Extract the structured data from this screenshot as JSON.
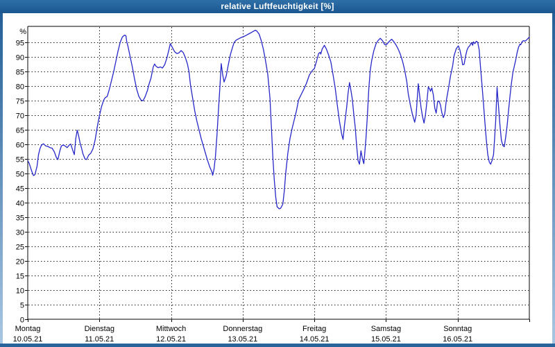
{
  "window": {
    "title": "relative Luftfeuchtigkeit [%]"
  },
  "colors": {
    "titlebar": "#1f5f96",
    "frame": "#28639a",
    "plot_background": "#ffffff",
    "grid": "#1a1a1a",
    "axis": "#000000",
    "series_line": "#2626c9",
    "title_text": "#ffffff",
    "tick_text": "#000000"
  },
  "chart_data": {
    "type": "line",
    "title": "relative Luftfeuchtigkeit [%]",
    "xlabel": "",
    "ylabel": "%",
    "ylim": [
      0,
      100.5
    ],
    "ytick_min": 0,
    "ytick_max": 95,
    "ytick_step": 5,
    "grid": true,
    "legend": "none",
    "x_axis": {
      "unit": "days",
      "range": [
        0,
        7
      ],
      "day_labels": [
        {
          "name": "Montag",
          "date": "10.05.21"
        },
        {
          "name": "Dienstag",
          "date": "11.05.21"
        },
        {
          "name": "Mittwoch",
          "date": "12.05.21"
        },
        {
          "name": "Donnerstag",
          "date": "13.05.21"
        },
        {
          "name": "Freitag",
          "date": "14.05.21"
        },
        {
          "name": "Samstag",
          "date": "15.05.21"
        },
        {
          "name": "Sonntag",
          "date": "16.05.21"
        }
      ]
    },
    "series": [
      {
        "name": "relative Luftfeuchtigkeit [%]",
        "points": [
          [
            0,
            54.4
          ],
          [
            0.02,
            53.5
          ],
          [
            0.04,
            52
          ],
          [
            0.06,
            50.5
          ],
          [
            0.08,
            49.3
          ],
          [
            0.1,
            49.6
          ],
          [
            0.13,
            52.5
          ],
          [
            0.15,
            56.5
          ],
          [
            0.17,
            58.5
          ],
          [
            0.19,
            59.7
          ],
          [
            0.22,
            60.2
          ],
          [
            0.25,
            59.5
          ],
          [
            0.28,
            59.3
          ],
          [
            0.31,
            58.9
          ],
          [
            0.34,
            58.7
          ],
          [
            0.37,
            57.5
          ],
          [
            0.4,
            55.5
          ],
          [
            0.42,
            54.8
          ],
          [
            0.45,
            58
          ],
          [
            0.47,
            59.5
          ],
          [
            0.5,
            59.8
          ],
          [
            0.53,
            59.3
          ],
          [
            0.55,
            58.9
          ],
          [
            0.58,
            59.8
          ],
          [
            0.6,
            60.1
          ],
          [
            0.63,
            57.8
          ],
          [
            0.65,
            56.5
          ],
          [
            0.67,
            62
          ],
          [
            0.69,
            64.9
          ],
          [
            0.71,
            63
          ],
          [
            0.73,
            60.5
          ],
          [
            0.75,
            58.8
          ],
          [
            0.77,
            56.8
          ],
          [
            0.8,
            55
          ],
          [
            0.82,
            54.8
          ],
          [
            0.85,
            56.3
          ],
          [
            0.88,
            57
          ],
          [
            0.91,
            58.5
          ],
          [
            0.94,
            61.5
          ],
          [
            0.97,
            66
          ],
          [
            1,
            69.8
          ],
          [
            1.03,
            73
          ],
          [
            1.06,
            75.2
          ],
          [
            1.08,
            76
          ],
          [
            1.11,
            76.5
          ],
          [
            1.14,
            79
          ],
          [
            1.17,
            82
          ],
          [
            1.2,
            85
          ],
          [
            1.23,
            88.5
          ],
          [
            1.26,
            92
          ],
          [
            1.29,
            95
          ],
          [
            1.32,
            96.8
          ],
          [
            1.35,
            97.5
          ],
          [
            1.37,
            97.3
          ],
          [
            1.38,
            95.5
          ],
          [
            1.4,
            93.5
          ],
          [
            1.43,
            90
          ],
          [
            1.46,
            86.5
          ],
          [
            1.49,
            82.5
          ],
          [
            1.52,
            79
          ],
          [
            1.55,
            76.5
          ],
          [
            1.58,
            75.2
          ],
          [
            1.61,
            75
          ],
          [
            1.64,
            76.5
          ],
          [
            1.67,
            78.5
          ],
          [
            1.69,
            80.5
          ],
          [
            1.72,
            82.8
          ],
          [
            1.75,
            86.5
          ],
          [
            1.77,
            87.6
          ],
          [
            1.79,
            86.8
          ],
          [
            1.82,
            86.3
          ],
          [
            1.85,
            86.6
          ],
          [
            1.88,
            86.2
          ],
          [
            1.91,
            87.3
          ],
          [
            1.94,
            89.5
          ],
          [
            1.97,
            92.5
          ],
          [
            1.99,
            94.6
          ],
          [
            2.02,
            93.2
          ],
          [
            2.05,
            91.8
          ],
          [
            2.08,
            91.2
          ],
          [
            2.11,
            91.4
          ],
          [
            2.14,
            92.2
          ],
          [
            2.17,
            91.5
          ],
          [
            2.2,
            89.8
          ],
          [
            2.23,
            87.5
          ],
          [
            2.25,
            85
          ],
          [
            2.27,
            80.5
          ],
          [
            2.3,
            76
          ],
          [
            2.33,
            71.5
          ],
          [
            2.36,
            68
          ],
          [
            2.39,
            65
          ],
          [
            2.42,
            62
          ],
          [
            2.45,
            59.5
          ],
          [
            2.48,
            57
          ],
          [
            2.51,
            54.5
          ],
          [
            2.54,
            52.3
          ],
          [
            2.57,
            50.6
          ],
          [
            2.58,
            49.4
          ],
          [
            2.6,
            51.5
          ],
          [
            2.62,
            56
          ],
          [
            2.64,
            63
          ],
          [
            2.66,
            71
          ],
          [
            2.68,
            79
          ],
          [
            2.7,
            87.7
          ],
          [
            2.72,
            84
          ],
          [
            2.74,
            81.4
          ],
          [
            2.77,
            83.5
          ],
          [
            2.8,
            87.5
          ],
          [
            2.83,
            91
          ],
          [
            2.86,
            93.5
          ],
          [
            2.88,
            95
          ],
          [
            2.91,
            95.8
          ],
          [
            2.94,
            96.2
          ],
          [
            2.97,
            96.6
          ],
          [
            3,
            96.9
          ],
          [
            3.03,
            97.2
          ],
          [
            3.06,
            97.6
          ],
          [
            3.09,
            98
          ],
          [
            3.12,
            98.4
          ],
          [
            3.15,
            98.8
          ],
          [
            3.18,
            99.2
          ],
          [
            3.2,
            98.8
          ],
          [
            3.23,
            97.8
          ],
          [
            3.26,
            95.5
          ],
          [
            3.29,
            92.5
          ],
          [
            3.32,
            88.5
          ],
          [
            3.35,
            84
          ],
          [
            3.38,
            76
          ],
          [
            3.4,
            66
          ],
          [
            3.42,
            56
          ],
          [
            3.44,
            48
          ],
          [
            3.46,
            42
          ],
          [
            3.48,
            38.6
          ],
          [
            3.51,
            37.9
          ],
          [
            3.53,
            38.1
          ],
          [
            3.56,
            39.5
          ],
          [
            3.58,
            44
          ],
          [
            3.6,
            50
          ],
          [
            3.63,
            57
          ],
          [
            3.66,
            62
          ],
          [
            3.69,
            65.5
          ],
          [
            3.72,
            68.5
          ],
          [
            3.75,
            71.5
          ],
          [
            3.78,
            75.3
          ],
          [
            3.81,
            76.8
          ],
          [
            3.85,
            78.8
          ],
          [
            3.89,
            81
          ],
          [
            3.93,
            83.8
          ],
          [
            3.97,
            85.3
          ],
          [
            4,
            86
          ],
          [
            4.03,
            88.5
          ],
          [
            4.06,
            91.2
          ],
          [
            4.08,
            91.6
          ],
          [
            4.09,
            91
          ],
          [
            4.11,
            92.8
          ],
          [
            4.14,
            94
          ],
          [
            4.17,
            92.6
          ],
          [
            4.2,
            90.6
          ],
          [
            4.23,
            88.3
          ],
          [
            4.26,
            84
          ],
          [
            4.29,
            79.5
          ],
          [
            4.32,
            73.5
          ],
          [
            4.35,
            68
          ],
          [
            4.38,
            63.6
          ],
          [
            4.4,
            61.7
          ],
          [
            4.42,
            66.5
          ],
          [
            4.45,
            72.5
          ],
          [
            4.47,
            77.5
          ],
          [
            4.49,
            81.2
          ],
          [
            4.51,
            78.6
          ],
          [
            4.53,
            75.4
          ],
          [
            4.55,
            70.5
          ],
          [
            4.57,
            66
          ],
          [
            4.59,
            59.5
          ],
          [
            4.61,
            54.5
          ],
          [
            4.63,
            53.2
          ],
          [
            4.65,
            57.8
          ],
          [
            4.67,
            55.2
          ],
          [
            4.69,
            53.4
          ],
          [
            4.7,
            55.8
          ],
          [
            4.72,
            62
          ],
          [
            4.74,
            70
          ],
          [
            4.76,
            79
          ],
          [
            4.78,
            85.5
          ],
          [
            4.8,
            88.8
          ],
          [
            4.83,
            92.2
          ],
          [
            4.86,
            94.5
          ],
          [
            4.89,
            95.7
          ],
          [
            4.92,
            96.4
          ],
          [
            4.95,
            95.6
          ],
          [
            4.98,
            94.3
          ],
          [
            5,
            94.1
          ],
          [
            5.03,
            94.9
          ],
          [
            5.06,
            95.7
          ],
          [
            5.08,
            96.1
          ],
          [
            5.11,
            95.2
          ],
          [
            5.14,
            94.1
          ],
          [
            5.17,
            92.7
          ],
          [
            5.2,
            90.9
          ],
          [
            5.23,
            88.6
          ],
          [
            5.26,
            85.5
          ],
          [
            5.29,
            81.5
          ],
          [
            5.31,
            77.5
          ],
          [
            5.34,
            73.5
          ],
          [
            5.37,
            70.2
          ],
          [
            5.4,
            67.6
          ],
          [
            5.42,
            70
          ],
          [
            5.45,
            80.8
          ],
          [
            5.47,
            76.5
          ],
          [
            5.49,
            72.5
          ],
          [
            5.51,
            69.5
          ],
          [
            5.53,
            67.3
          ],
          [
            5.55,
            70
          ],
          [
            5.57,
            74.5
          ],
          [
            5.59,
            79.7
          ],
          [
            5.61,
            79
          ],
          [
            5.62,
            78.2
          ],
          [
            5.64,
            79.4
          ],
          [
            5.66,
            77
          ],
          [
            5.68,
            72.5
          ],
          [
            5.7,
            70.7
          ],
          [
            5.72,
            74.6
          ],
          [
            5.74,
            74.9
          ],
          [
            5.76,
            73.5
          ],
          [
            5.78,
            70.8
          ],
          [
            5.8,
            69.2
          ],
          [
            5.82,
            70.5
          ],
          [
            5.84,
            74.8
          ],
          [
            5.87,
            79
          ],
          [
            5.9,
            83.5
          ],
          [
            5.93,
            87
          ],
          [
            5.95,
            90.5
          ],
          [
            5.98,
            92.8
          ],
          [
            6.01,
            93.8
          ],
          [
            6.03,
            92.5
          ],
          [
            6.05,
            90.2
          ],
          [
            6.07,
            87.3
          ],
          [
            6.09,
            87.5
          ],
          [
            6.11,
            90.3
          ],
          [
            6.13,
            92.3
          ],
          [
            6.15,
            93.4
          ],
          [
            6.17,
            93.9
          ],
          [
            6.19,
            94.9
          ],
          [
            6.21,
            94
          ],
          [
            6.22,
            95.2
          ],
          [
            6.24,
            94.6
          ],
          [
            6.26,
            95.4
          ],
          [
            6.28,
            95
          ],
          [
            6.3,
            92.5
          ],
          [
            6.32,
            86
          ],
          [
            6.34,
            80.3
          ],
          [
            6.36,
            74
          ],
          [
            6.38,
            67.5
          ],
          [
            6.4,
            61.5
          ],
          [
            6.42,
            56.5
          ],
          [
            6.44,
            54
          ],
          [
            6.46,
            53.2
          ],
          [
            6.48,
            54.5
          ],
          [
            6.5,
            56.5
          ],
          [
            6.51,
            60
          ],
          [
            6.53,
            68
          ],
          [
            6.55,
            79.6
          ],
          [
            6.57,
            73
          ],
          [
            6.59,
            66.5
          ],
          [
            6.61,
            61.5
          ],
          [
            6.63,
            59.6
          ],
          [
            6.65,
            59.2
          ],
          [
            6.67,
            62.5
          ],
          [
            6.69,
            66.5
          ],
          [
            6.71,
            71.5
          ],
          [
            6.73,
            76.5
          ],
          [
            6.75,
            81
          ],
          [
            6.77,
            84.5
          ],
          [
            6.79,
            86.8
          ],
          [
            6.81,
            89
          ],
          [
            6.83,
            91.5
          ],
          [
            6.85,
            93.4
          ],
          [
            6.87,
            94.4
          ],
          [
            6.88,
            94.2
          ],
          [
            6.9,
            95.3
          ],
          [
            6.92,
            95.6
          ],
          [
            6.94,
            95.4
          ],
          [
            6.96,
            95.8
          ],
          [
            6.98,
            96.3
          ],
          [
            7,
            96.8
          ]
        ]
      }
    ]
  }
}
